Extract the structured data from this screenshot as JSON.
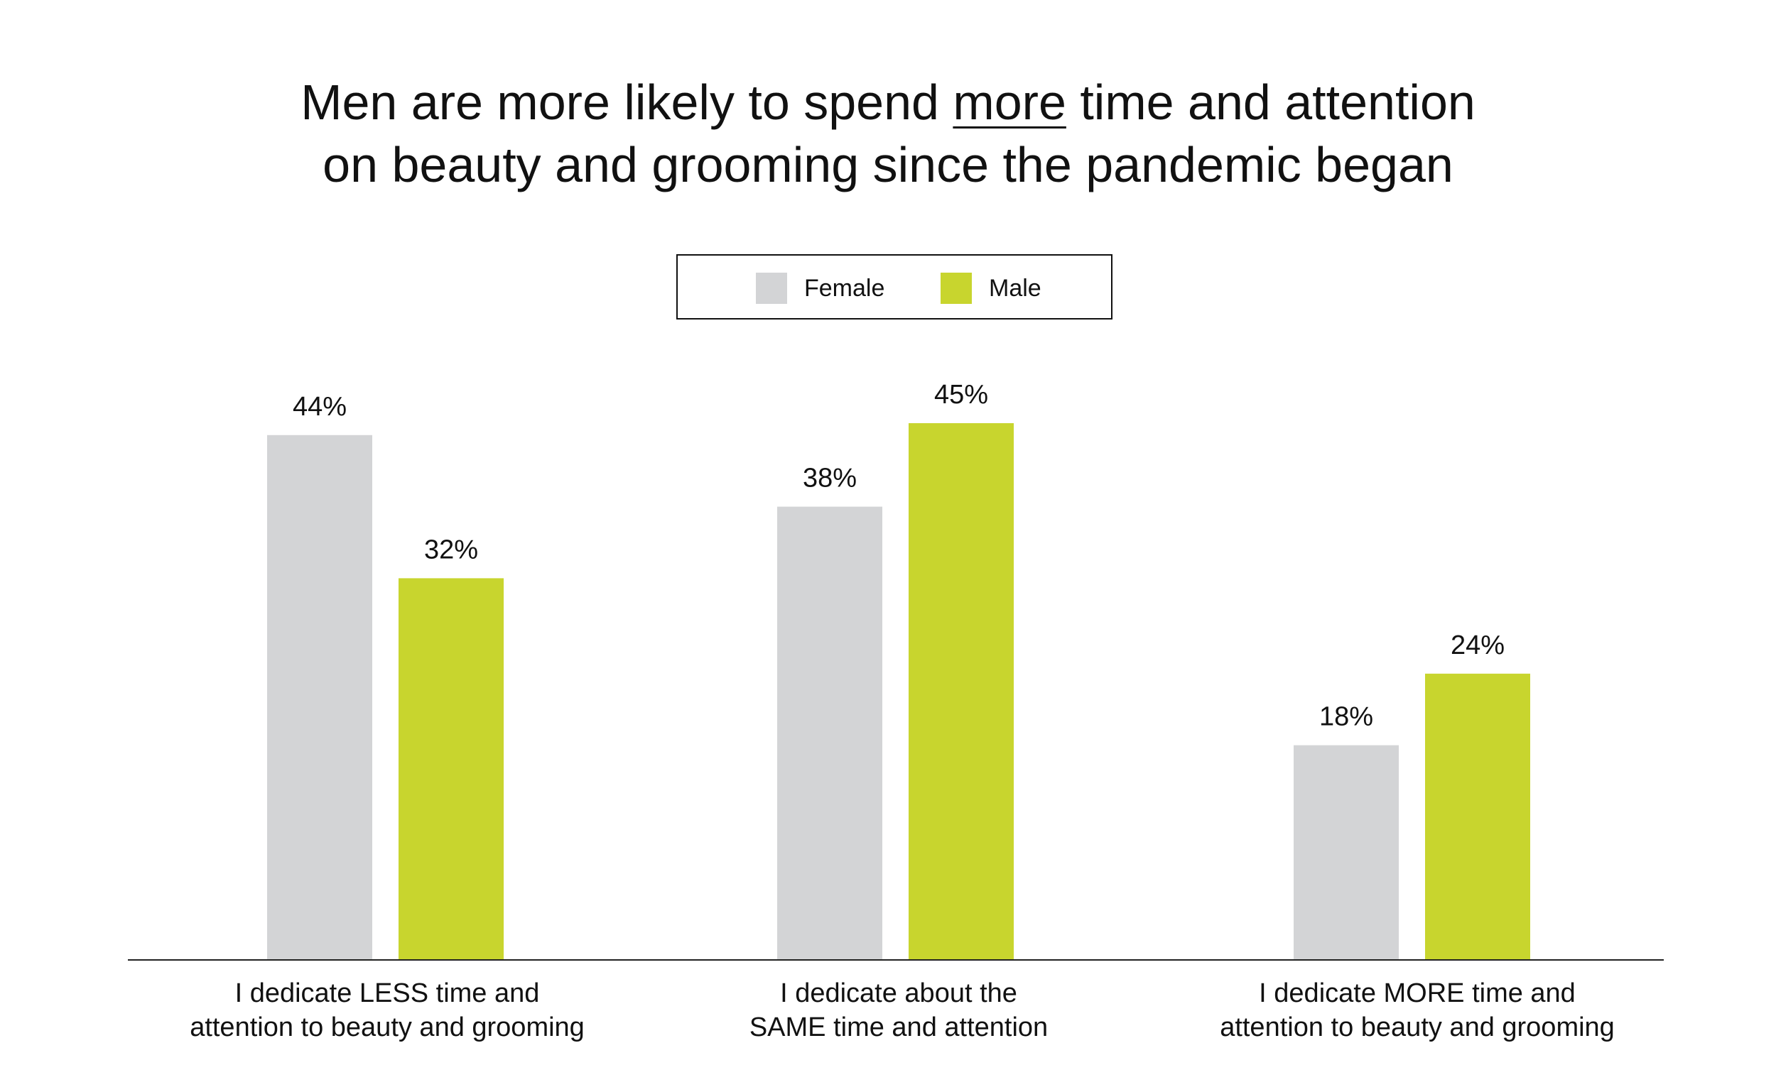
{
  "title": {
    "line1_before": "Men are more likely to spend ",
    "line1_emph": "more",
    "line1_after": " time and attention",
    "line2": "on beauty and grooming since the pandemic began"
  },
  "legend": {
    "female_label": "Female",
    "male_label": "Male"
  },
  "colors": {
    "female": "#d3d4d6",
    "male": "#c8d52e",
    "axis": "#222222",
    "text": "#111111"
  },
  "chart_data": {
    "type": "bar",
    "title": "Men are more likely to spend more time and attention on beauty and grooming since the pandemic began",
    "categories": [
      "I dedicate LESS time and attention to beauty and grooming",
      "I dedicate about the SAME time and attention",
      "I dedicate MORE time and attention to beauty and grooming"
    ],
    "category_lines": [
      [
        "I dedicate LESS time and",
        "attention to beauty and grooming"
      ],
      [
        "I dedicate about the",
        "SAME time and attention"
      ],
      [
        "I dedicate MORE time and",
        "attention to beauty and grooming"
      ]
    ],
    "series": [
      {
        "name": "Female",
        "values": [
          44,
          38,
          18
        ],
        "labels": [
          "44%",
          "38%",
          "18%"
        ]
      },
      {
        "name": "Male",
        "values": [
          32,
          45,
          24
        ],
        "labels": [
          "32%",
          "45%",
          "24%"
        ]
      }
    ],
    "xlabel": "",
    "ylabel": "",
    "ylim": [
      0,
      50
    ],
    "grid": false,
    "legend_position": "top-center"
  }
}
